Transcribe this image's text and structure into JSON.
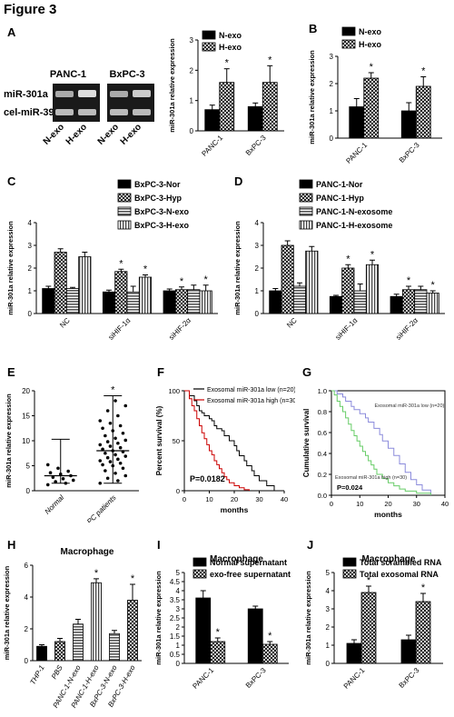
{
  "figure_title": "Figure 3",
  "blot": {
    "label": "A",
    "cell_lines": [
      "PANC-1",
      "BxPC-3"
    ],
    "rows": [
      "miR-301a",
      "cel-miR-39"
    ],
    "lanes": [
      "N-exo",
      "H-exo",
      "N-exo",
      "H-exo"
    ]
  },
  "chart_data": [
    {
      "id": "A-bar",
      "type": "bar",
      "categories": [
        "PANC-1",
        "BxPC-3"
      ],
      "series": [
        {
          "name": "N-exo",
          "values": [
            0.7,
            0.8
          ],
          "errors": [
            0.15,
            0.12
          ],
          "pattern": "black"
        },
        {
          "name": "H-exo",
          "values": [
            1.6,
            1.6
          ],
          "errors": [
            0.45,
            0.55
          ],
          "pattern": "check",
          "sig": [
            true,
            true
          ]
        }
      ],
      "ylabel": "miR-301a relative expression",
      "ylim": [
        0,
        3
      ],
      "yticks": [
        0,
        1,
        2,
        3
      ]
    },
    {
      "id": "B",
      "label": "B",
      "type": "bar",
      "categories": [
        "PANC-1",
        "BxPC-3"
      ],
      "series": [
        {
          "name": "N-exo",
          "values": [
            1.15,
            1.0
          ],
          "errors": [
            0.3,
            0.3
          ],
          "pattern": "black"
        },
        {
          "name": "H-exo",
          "values": [
            2.2,
            1.9
          ],
          "errors": [
            0.2,
            0.35
          ],
          "pattern": "check",
          "sig": [
            true,
            true
          ]
        }
      ],
      "ylabel": "miR-301a relative expression",
      "ylim": [
        0,
        3
      ],
      "yticks": [
        0,
        1,
        2,
        3
      ]
    },
    {
      "id": "C",
      "label": "C",
      "type": "bar",
      "categories": [
        "NC",
        "siHIF-1α",
        "siHIF-2α"
      ],
      "series": [
        {
          "name": "BxPC-3-Nor",
          "values": [
            1.1,
            0.95,
            1.0
          ],
          "errors": [
            0.1,
            0.08,
            0.08
          ],
          "pattern": "black"
        },
        {
          "name": "BxPC-3-Hyp",
          "values": [
            2.7,
            1.85,
            1.05
          ],
          "errors": [
            0.15,
            0.1,
            0.12
          ],
          "pattern": "check",
          "sig": [
            false,
            true,
            true
          ]
        },
        {
          "name": "BxPC-3-N-exo",
          "values": [
            1.1,
            0.95,
            1.05
          ],
          "errors": [
            0.05,
            0.25,
            0.2
          ],
          "pattern": "hstripe"
        },
        {
          "name": "BxPC-3-H-exo",
          "values": [
            2.5,
            1.6,
            1.0
          ],
          "errors": [
            0.2,
            0.1,
            0.25
          ],
          "pattern": "vstripe",
          "sig": [
            false,
            true,
            true
          ]
        }
      ],
      "ylabel": "miR-301a relative expression",
      "ylim": [
        0,
        4
      ],
      "yticks": [
        0,
        1,
        2,
        3,
        4
      ]
    },
    {
      "id": "D",
      "label": "D",
      "type": "bar",
      "categories": [
        "NC",
        "siHIF-1α",
        "siHIF-2α"
      ],
      "series": [
        {
          "name": "PANC-1-Nor",
          "values": [
            1.0,
            0.75,
            0.75
          ],
          "errors": [
            0.1,
            0.05,
            0.1
          ],
          "pattern": "black"
        },
        {
          "name": "PANC-1-Hyp",
          "values": [
            3.0,
            2.0,
            1.05
          ],
          "errors": [
            0.2,
            0.15,
            0.15
          ],
          "pattern": "check",
          "sig": [
            false,
            true,
            true
          ]
        },
        {
          "name": "PANC-1-N-exosome",
          "values": [
            1.2,
            1.0,
            1.05
          ],
          "errors": [
            0.15,
            0.3,
            0.15
          ],
          "pattern": "hstripe"
        },
        {
          "name": "PANC-1-H-exosome",
          "values": [
            2.75,
            2.15,
            0.9
          ],
          "errors": [
            0.2,
            0.2,
            0.1
          ],
          "pattern": "vstripe",
          "sig": [
            false,
            true,
            true
          ]
        }
      ],
      "ylabel": "miR-301a relative expression",
      "ylim": [
        0,
        4
      ],
      "yticks": [
        0,
        1,
        2,
        3,
        4
      ]
    },
    {
      "id": "E",
      "label": "E",
      "type": "scatter",
      "categories": [
        "Normal",
        "PC patients"
      ],
      "groups": [
        {
          "name": "Normal",
          "values": [
            1.2,
            1.5,
            1.8,
            2.1,
            2.4,
            2.7,
            3.0,
            3.3,
            3.6,
            3.9,
            4.5,
            5.2
          ],
          "mean": 3.0,
          "sd": [
            1.5,
            10.3
          ]
        },
        {
          "name": "PC patients",
          "values": [
            1.5,
            2.0,
            2.5,
            3.0,
            3.5,
            4.0,
            4.5,
            5.0,
            5.2,
            5.5,
            5.8,
            6.0,
            6.3,
            6.6,
            6.9,
            7.2,
            7.5,
            7.8,
            8.0,
            8.3,
            8.6,
            8.9,
            9.2,
            9.5,
            9.8,
            10.1,
            10.5,
            11.0,
            11.5,
            12.0,
            12.5,
            13.0,
            13.5,
            14.0,
            15.0,
            16.0,
            17.0,
            18.0
          ],
          "mean": 8.0,
          "sd": [
            1.5,
            19.0
          ],
          "sig": true
        }
      ],
      "ylabel": "miR-301a relative expression",
      "ylim": [
        0,
        20
      ],
      "yticks": [
        0,
        5,
        10,
        15,
        20
      ]
    },
    {
      "id": "F",
      "label": "F",
      "type": "line",
      "series": [
        {
          "name": "Exosomal miR-301a low (n=20)",
          "color": "#000000",
          "x": [
            0,
            2,
            4,
            5,
            6,
            7,
            8,
            10,
            11,
            12,
            13,
            15,
            16,
            18,
            20,
            21,
            22,
            24,
            25,
            27,
            28,
            30,
            33,
            36
          ],
          "y": [
            100,
            95,
            90,
            85,
            80,
            78,
            75,
            72,
            70,
            65,
            62,
            60,
            55,
            50,
            45,
            40,
            35,
            30,
            25,
            20,
            15,
            10,
            5,
            0
          ]
        },
        {
          "name": "Exosomal miR-301a high (n=30)",
          "color": "#cc0000",
          "x": [
            0,
            2,
            3,
            4,
            5,
            6,
            7,
            8,
            9,
            10,
            11,
            12,
            13,
            14,
            15,
            16,
            17,
            18,
            20,
            22,
            24,
            26
          ],
          "y": [
            100,
            92,
            85,
            80,
            72,
            65,
            58,
            52,
            46,
            40,
            36,
            30,
            26,
            22,
            18,
            14,
            11,
            8,
            5,
            3,
            1,
            0
          ]
        }
      ],
      "ylabel": "Percent survival (%)",
      "xlabel": "months",
      "xlim": [
        0,
        40
      ],
      "ylim": [
        0,
        100
      ],
      "xticks": [
        0,
        10,
        20,
        30,
        40
      ],
      "yticks": [
        0,
        50,
        100
      ],
      "annotation": "P=0.0182"
    },
    {
      "id": "G",
      "label": "G",
      "type": "line",
      "series": [
        {
          "name": "Exosomal miR-301a low (n=20)",
          "color": "#8b8bdc",
          "x": [
            0,
            2,
            4,
            5,
            7,
            8,
            10,
            12,
            13,
            15,
            17,
            18,
            20,
            22,
            24,
            26,
            28,
            30,
            32,
            35
          ],
          "y": [
            1.0,
            0.97,
            0.94,
            0.9,
            0.85,
            0.82,
            0.78,
            0.74,
            0.7,
            0.64,
            0.58,
            0.52,
            0.45,
            0.38,
            0.3,
            0.22,
            0.15,
            0.1,
            0.05,
            0.0
          ]
        },
        {
          "name": "Exosomal miR-301a high (n=30)",
          "color": "#66cc66",
          "x": [
            0,
            1,
            2,
            3,
            4,
            5,
            6,
            7,
            8,
            9,
            10,
            11,
            12,
            13,
            14,
            15,
            16,
            18,
            20,
            22,
            24,
            26,
            30,
            35
          ],
          "y": [
            1.0,
            0.96,
            0.9,
            0.85,
            0.8,
            0.74,
            0.68,
            0.62,
            0.57,
            0.52,
            0.47,
            0.42,
            0.38,
            0.33,
            0.29,
            0.25,
            0.2,
            0.16,
            0.12,
            0.09,
            0.06,
            0.04,
            0.02,
            0.0
          ]
        }
      ],
      "ylabel": "Cumulative survival",
      "xlabel": "months",
      "xlim": [
        0,
        40
      ],
      "ylim": [
        0,
        1.0
      ],
      "xticks": [
        0,
        10,
        20,
        30,
        40
      ],
      "yticks": [
        0.0,
        0.2,
        0.4,
        0.6,
        0.8,
        1.0
      ],
      "annotation": "P=0.024"
    },
    {
      "id": "H",
      "label": "H",
      "type": "bar",
      "title": "Macrophage",
      "categories": [
        "THP-1",
        "PBS",
        "PANC-1-N-exo",
        "PANC-1-H-exo",
        "BxPC-3-N-exo",
        "BxPC-3-H-exo"
      ],
      "series": [
        {
          "name": "",
          "values": [
            0.9,
            1.2,
            2.3,
            4.9,
            1.7,
            3.8
          ],
          "errors": [
            0.1,
            0.2,
            0.3,
            0.25,
            0.2,
            1.0
          ],
          "patterns": [
            "black",
            "check",
            "hstripe",
            "vstripe",
            "hstripe",
            "check"
          ],
          "sig": [
            false,
            false,
            false,
            true,
            false,
            true
          ]
        }
      ],
      "ylabel": "miR-301a relative expression",
      "ylim": [
        0,
        6
      ],
      "yticks": [
        0,
        2,
        4,
        6
      ]
    },
    {
      "id": "I",
      "label": "I",
      "type": "bar",
      "title": "Macrophage",
      "categories": [
        "PANC-1",
        "BxPC-3"
      ],
      "series": [
        {
          "name": "Normal supernatant",
          "values": [
            3.6,
            3.0
          ],
          "errors": [
            0.4,
            0.15
          ],
          "pattern": "black"
        },
        {
          "name": "exo-free supernatant",
          "values": [
            1.2,
            1.05
          ],
          "errors": [
            0.2,
            0.15
          ],
          "pattern": "check",
          "sig": [
            true,
            true
          ]
        }
      ],
      "ylabel": "miR-301a relative expression",
      "ylim": [
        0,
        5
      ],
      "yticks": [
        0.0,
        0.5,
        1.0,
        1.5,
        2.0,
        2.5,
        3.0,
        3.5,
        4.0,
        4.5,
        5.0
      ]
    },
    {
      "id": "J",
      "label": "J",
      "type": "bar",
      "title": "Macrophage",
      "categories": [
        "PANC-1",
        "BxPC-3"
      ],
      "series": [
        {
          "name": "Total scrambled RNA",
          "values": [
            1.1,
            1.3
          ],
          "errors": [
            0.2,
            0.25
          ],
          "pattern": "black"
        },
        {
          "name": "Total exosomal RNA",
          "values": [
            3.9,
            3.4
          ],
          "errors": [
            0.35,
            0.45
          ],
          "pattern": "check",
          "sig": [
            true,
            true
          ]
        }
      ],
      "ylabel": "miR-301a relative expression",
      "ylim": [
        0,
        5
      ],
      "yticks": [
        0,
        1,
        2,
        3,
        4,
        5
      ]
    }
  ]
}
